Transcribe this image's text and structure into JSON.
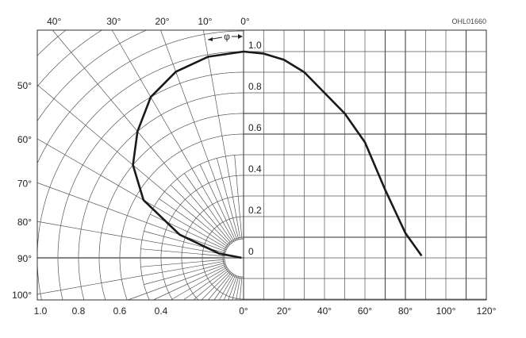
{
  "chart_data": {
    "type": "line",
    "title": "",
    "code": "OHL01660",
    "phi_label": "φ",
    "polar": {
      "angle_ticks_top": [
        "40°",
        "30°",
        "20°",
        "10°",
        "0°"
      ],
      "angle_ticks_left": [
        "50°",
        "60°",
        "70°",
        "80°",
        "90°",
        "100°"
      ],
      "radius_ticks_bottom": [
        "1.0",
        "0.8",
        "0.6",
        "0.4",
        "0°"
      ],
      "radius_range": [
        0,
        1.0
      ]
    },
    "cartesian": {
      "x_ticks": [
        "20°",
        "40°",
        "60°",
        "80°",
        "100°",
        "120°"
      ],
      "y_ticks": [
        "1.0",
        "0.8",
        "0.6",
        "0.4",
        "0.2",
        "0"
      ],
      "xlim": [
        0,
        120
      ],
      "ylim": [
        -0.2,
        1.1
      ]
    },
    "grid": true,
    "series": [
      {
        "x": [
          0,
          10,
          20,
          30,
          40,
          50,
          60,
          70,
          80,
          88
        ],
        "y": [
          1.0,
          0.99,
          0.96,
          0.9,
          0.8,
          0.7,
          0.56,
          0.33,
          0.12,
          0.01
        ]
      }
    ],
    "colors": {
      "curve": "#1a1a1a",
      "grid": "#555555"
    }
  }
}
